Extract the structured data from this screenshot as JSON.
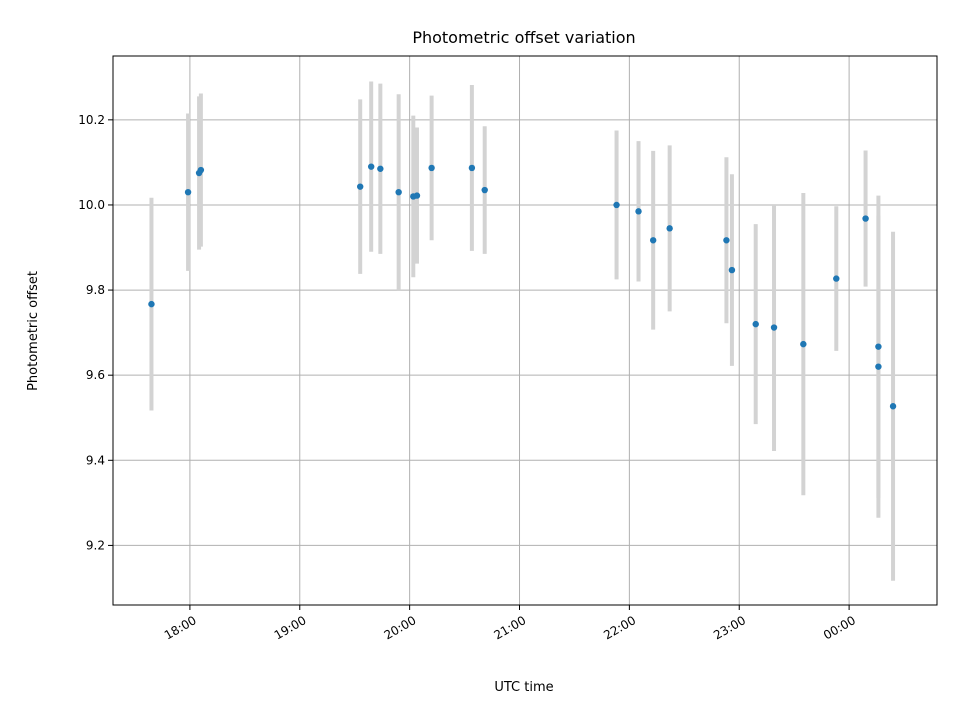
{
  "chart_data": {
    "type": "scatter",
    "title": "Photometric offset variation",
    "xlabel": "UTC time",
    "ylabel": "Photometric offset",
    "x_tick_labels": [
      "18:00",
      "19:00",
      "20:00",
      "21:00",
      "22:00",
      "23:00",
      "00:00"
    ],
    "y_tick_labels": [
      "9.2",
      "9.4",
      "9.6",
      "9.8",
      "10.0",
      "10.2"
    ],
    "x_tick_times": [
      "2023-01-01T18:00",
      "2023-01-01T19:00",
      "2023-01-01T20:00",
      "2023-01-01T21:00",
      "2023-01-01T22:00",
      "2023-01-01T23:00",
      "2023-01-02T00:00"
    ],
    "y_ticks": [
      9.2,
      9.4,
      9.6,
      9.8,
      10.0,
      10.2
    ],
    "xlim": [
      "2023-01-01T17:18",
      "2023-01-02T00:48"
    ],
    "ylim": [
      9.06,
      10.35
    ],
    "grid": true,
    "colors": {
      "points": "#1f77b4",
      "errorbars": "#d3d3d3",
      "grid": "#b0b0b0"
    },
    "series": [
      {
        "points": [
          {
            "x": "2023-01-01T17:39",
            "y": 9.767,
            "err": 0.25
          },
          {
            "x": "2023-01-01T17:59",
            "y": 10.03,
            "err": 0.185
          },
          {
            "x": "2023-01-01T18:05",
            "y": 10.075,
            "err": 0.18
          },
          {
            "x": "2023-01-01T18:06",
            "y": 10.082,
            "err": 0.18
          },
          {
            "x": "2023-01-01T19:33",
            "y": 10.043,
            "err": 0.205
          },
          {
            "x": "2023-01-01T19:39",
            "y": 10.09,
            "err": 0.2
          },
          {
            "x": "2023-01-01T19:44",
            "y": 10.085,
            "err": 0.2
          },
          {
            "x": "2023-01-01T19:54",
            "y": 10.03,
            "err": 0.23
          },
          {
            "x": "2023-01-01T20:02",
            "y": 10.02,
            "err": 0.19
          },
          {
            "x": "2023-01-01T20:04",
            "y": 10.022,
            "err": 0.16
          },
          {
            "x": "2023-01-01T20:12",
            "y": 10.087,
            "err": 0.17
          },
          {
            "x": "2023-01-01T20:34",
            "y": 10.087,
            "err": 0.195
          },
          {
            "x": "2023-01-01T20:41",
            "y": 10.035,
            "err": 0.15
          },
          {
            "x": "2023-01-01T21:53",
            "y": 10.0,
            "err": 0.175
          },
          {
            "x": "2023-01-01T22:05",
            "y": 9.985,
            "err": 0.165
          },
          {
            "x": "2023-01-01T22:13",
            "y": 9.917,
            "err": 0.21
          },
          {
            "x": "2023-01-01T22:22",
            "y": 9.945,
            "err": 0.195
          },
          {
            "x": "2023-01-01T22:53",
            "y": 9.917,
            "err": 0.195
          },
          {
            "x": "2023-01-01T22:56",
            "y": 9.847,
            "err": 0.225
          },
          {
            "x": "2023-01-01T23:09",
            "y": 9.72,
            "err": 0.235
          },
          {
            "x": "2023-01-01T23:19",
            "y": 9.712,
            "err": 0.29
          },
          {
            "x": "2023-01-01T23:35",
            "y": 9.673,
            "err": 0.355
          },
          {
            "x": "2023-01-01T23:53",
            "y": 9.827,
            "err": 0.17
          },
          {
            "x": "2023-01-02T00:09",
            "y": 9.968,
            "err": 0.16
          },
          {
            "x": "2023-01-02T00:16",
            "y": 9.667,
            "err": 0.355
          },
          {
            "x": "2023-01-02T00:16",
            "y": 9.62,
            "err": 0.355
          },
          {
            "x": "2023-01-02T00:24",
            "y": 9.527,
            "err": 0.41
          }
        ]
      }
    ]
  }
}
